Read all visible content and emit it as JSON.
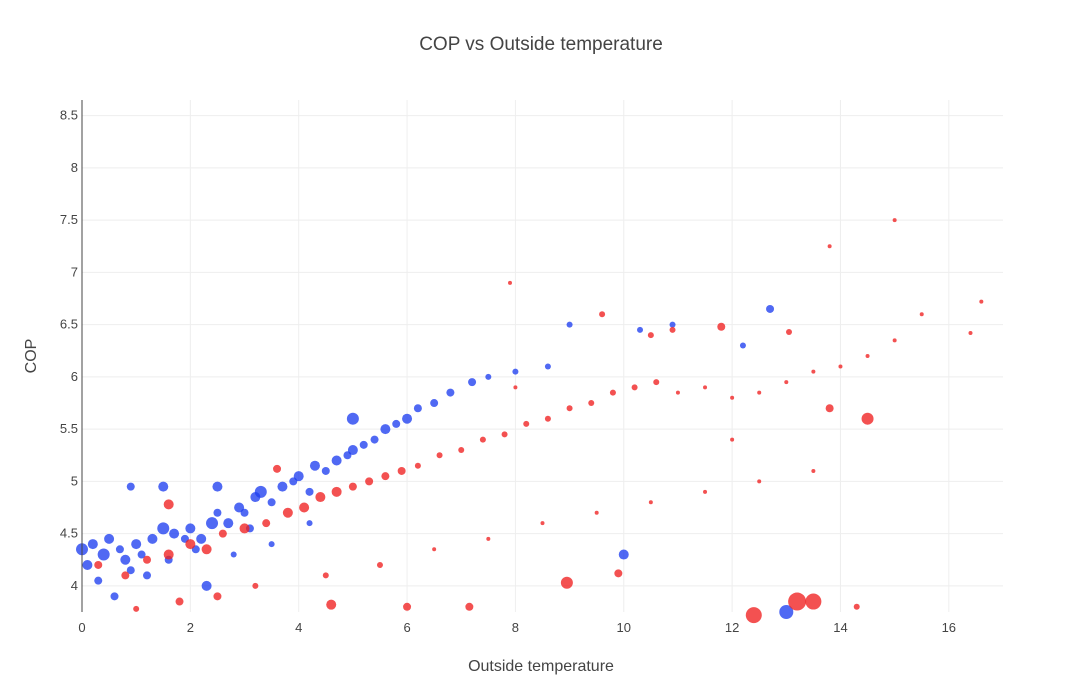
{
  "chart_data": {
    "type": "scatter",
    "title": "COP vs Outside temperature",
    "xlabel": "Outside temperature",
    "ylabel": "COP",
    "xlim": [
      0,
      17
    ],
    "ylim": [
      3.75,
      8.65
    ],
    "xticks": [
      0,
      2,
      4,
      6,
      8,
      10,
      12,
      14,
      16
    ],
    "yticks": [
      4,
      4.5,
      5,
      5.5,
      6,
      6.5,
      7,
      7.5,
      8,
      8.5
    ],
    "ytick_labels": [
      "4",
      "4.5",
      "5",
      "5.5",
      "6",
      "6.5",
      "7",
      "7.5",
      "8",
      "8.5"
    ],
    "grid": true,
    "legend": "none",
    "series": [
      {
        "color": "#1f3ff0",
        "points": [
          [
            0.0,
            4.35,
            6
          ],
          [
            0.2,
            4.4,
            5
          ],
          [
            0.4,
            4.3,
            6
          ],
          [
            0.5,
            4.45,
            5
          ],
          [
            0.7,
            4.35,
            4
          ],
          [
            0.8,
            4.25,
            5
          ],
          [
            1.0,
            4.4,
            5
          ],
          [
            1.1,
            4.3,
            4
          ],
          [
            1.3,
            4.45,
            5
          ],
          [
            1.5,
            4.55,
            6
          ],
          [
            1.7,
            4.5,
            5
          ],
          [
            1.9,
            4.45,
            4
          ],
          [
            2.0,
            4.55,
            5
          ],
          [
            2.2,
            4.45,
            5
          ],
          [
            2.4,
            4.6,
            6
          ],
          [
            2.5,
            4.7,
            4
          ],
          [
            2.7,
            4.6,
            5
          ],
          [
            2.9,
            4.75,
            5
          ],
          [
            3.0,
            4.7,
            4
          ],
          [
            3.2,
            4.85,
            5
          ],
          [
            3.3,
            4.9,
            6
          ],
          [
            3.5,
            4.8,
            4
          ],
          [
            3.7,
            4.95,
            5
          ],
          [
            3.9,
            5.0,
            4
          ],
          [
            4.0,
            5.05,
            5
          ],
          [
            4.2,
            4.9,
            4
          ],
          [
            4.3,
            5.15,
            5
          ],
          [
            4.5,
            5.1,
            4
          ],
          [
            4.7,
            5.2,
            5
          ],
          [
            4.9,
            5.25,
            4
          ],
          [
            5.0,
            5.3,
            5
          ],
          [
            5.2,
            5.35,
            4
          ],
          [
            5.4,
            5.4,
            4
          ],
          [
            5.6,
            5.5,
            5
          ],
          [
            5.8,
            5.55,
            4
          ],
          [
            6.0,
            5.6,
            5
          ],
          [
            6.2,
            5.7,
            4
          ],
          [
            6.5,
            5.75,
            4
          ],
          [
            6.8,
            5.85,
            4
          ],
          [
            7.2,
            5.95,
            4
          ],
          [
            7.5,
            6.0,
            3
          ],
          [
            8.0,
            6.05,
            3
          ],
          [
            8.6,
            6.1,
            3
          ],
          [
            9.0,
            6.5,
            3
          ],
          [
            10.3,
            6.45,
            3
          ],
          [
            10.9,
            6.5,
            3
          ],
          [
            12.7,
            6.65,
            4
          ],
          [
            12.2,
            6.3,
            3
          ],
          [
            5.0,
            5.6,
            6
          ],
          [
            1.5,
            4.95,
            5
          ],
          [
            0.9,
            4.95,
            4
          ],
          [
            2.5,
            4.95,
            5
          ],
          [
            10.0,
            4.3,
            5
          ],
          [
            13.0,
            3.75,
            7
          ],
          [
            2.3,
            4.0,
            5
          ],
          [
            0.6,
            3.9,
            4
          ],
          [
            1.2,
            4.1,
            4
          ],
          [
            3.5,
            4.4,
            3
          ],
          [
            4.2,
            4.6,
            3
          ],
          [
            2.8,
            4.3,
            3
          ],
          [
            0.1,
            4.2,
            5
          ],
          [
            0.3,
            4.05,
            4
          ],
          [
            0.9,
            4.15,
            4
          ],
          [
            1.6,
            4.25,
            4
          ],
          [
            2.1,
            4.35,
            4
          ],
          [
            3.1,
            4.55,
            4
          ]
        ]
      },
      {
        "color": "#f02020",
        "points": [
          [
            0.3,
            4.2,
            4
          ],
          [
            0.8,
            4.1,
            4
          ],
          [
            1.2,
            4.25,
            4
          ],
          [
            1.6,
            4.3,
            5
          ],
          [
            2.0,
            4.4,
            5
          ],
          [
            2.3,
            4.35,
            5
          ],
          [
            2.6,
            4.5,
            4
          ],
          [
            3.0,
            4.55,
            5
          ],
          [
            3.4,
            4.6,
            4
          ],
          [
            3.8,
            4.7,
            5
          ],
          [
            4.1,
            4.75,
            5
          ],
          [
            4.4,
            4.85,
            5
          ],
          [
            4.7,
            4.9,
            5
          ],
          [
            5.0,
            4.95,
            4
          ],
          [
            5.3,
            5.0,
            4
          ],
          [
            5.6,
            5.05,
            4
          ],
          [
            5.9,
            5.1,
            4
          ],
          [
            6.2,
            5.15,
            3
          ],
          [
            6.6,
            5.25,
            3
          ],
          [
            7.0,
            5.3,
            3
          ],
          [
            7.4,
            5.4,
            3
          ],
          [
            7.8,
            5.45,
            3
          ],
          [
            8.2,
            5.55,
            3
          ],
          [
            8.6,
            5.6,
            3
          ],
          [
            9.0,
            5.7,
            3
          ],
          [
            9.4,
            5.75,
            3
          ],
          [
            9.8,
            5.85,
            3
          ],
          [
            10.2,
            5.9,
            3
          ],
          [
            10.6,
            5.95,
            3
          ],
          [
            11.0,
            5.85,
            2
          ],
          [
            11.5,
            5.9,
            2
          ],
          [
            12.0,
            5.8,
            2
          ],
          [
            12.5,
            5.85,
            2
          ],
          [
            13.0,
            5.95,
            2
          ],
          [
            13.5,
            6.05,
            2
          ],
          [
            14.0,
            6.1,
            2
          ],
          [
            14.5,
            6.2,
            2
          ],
          [
            15.0,
            6.35,
            2
          ],
          [
            15.5,
            6.6,
            2
          ],
          [
            15.0,
            7.5,
            2
          ],
          [
            13.8,
            7.25,
            2
          ],
          [
            16.6,
            6.72,
            2
          ],
          [
            16.4,
            6.42,
            2
          ],
          [
            14.5,
            5.6,
            6
          ],
          [
            13.8,
            5.7,
            4
          ],
          [
            13.2,
            3.85,
            9
          ],
          [
            13.5,
            3.85,
            8
          ],
          [
            12.4,
            3.72,
            8
          ],
          [
            8.95,
            4.03,
            6
          ],
          [
            9.9,
            4.12,
            4
          ],
          [
            7.15,
            3.8,
            4
          ],
          [
            6.0,
            3.8,
            4
          ],
          [
            4.6,
            3.82,
            5
          ],
          [
            1.6,
            4.78,
            5
          ],
          [
            3.6,
            5.12,
            4
          ],
          [
            9.6,
            6.6,
            3
          ],
          [
            10.9,
            6.45,
            3
          ],
          [
            11.8,
            6.48,
            4
          ],
          [
            13.05,
            6.43,
            3
          ],
          [
            10.5,
            6.4,
            3
          ],
          [
            1.8,
            3.85,
            4
          ],
          [
            2.5,
            3.9,
            4
          ],
          [
            1.0,
            3.78,
            3
          ],
          [
            3.2,
            4.0,
            3
          ],
          [
            4.5,
            4.1,
            3
          ],
          [
            5.5,
            4.2,
            3
          ],
          [
            6.5,
            4.35,
            2
          ],
          [
            7.5,
            4.45,
            2
          ],
          [
            8.5,
            4.6,
            2
          ],
          [
            9.5,
            4.7,
            2
          ],
          [
            10.5,
            4.8,
            2
          ],
          [
            11.5,
            4.9,
            2
          ],
          [
            12.5,
            5.0,
            2
          ],
          [
            13.5,
            5.1,
            2
          ],
          [
            8.0,
            5.9,
            2
          ],
          [
            7.9,
            6.9,
            2
          ],
          [
            14.3,
            3.8,
            3
          ],
          [
            12.0,
            5.4,
            2
          ]
        ]
      }
    ]
  }
}
